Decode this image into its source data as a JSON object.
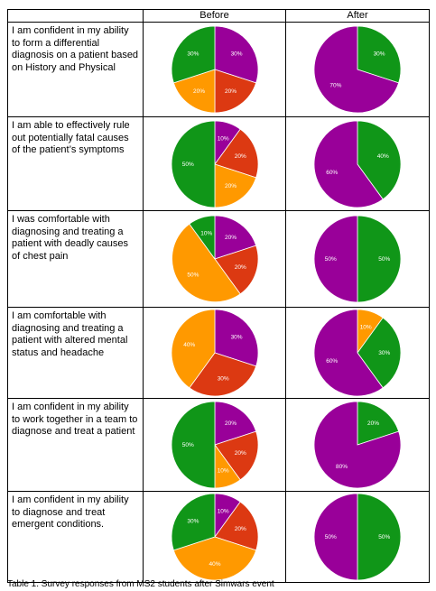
{
  "header": {
    "before_label": "Before",
    "after_label": "After"
  },
  "colors": {
    "purple": "#990099",
    "green": "#109618",
    "orange": "#ff9900",
    "red": "#dc3912"
  },
  "rows": [
    {
      "question": "I am confident in my ability to form a differential diagnosis on a patient based on History and Physical",
      "before": [
        {
          "category": "purple",
          "value": 30,
          "label": "30%"
        },
        {
          "category": "red",
          "value": 20,
          "label": "20%"
        },
        {
          "category": "orange",
          "value": 20,
          "label": "20%"
        },
        {
          "category": "green",
          "value": 30,
          "label": "30%"
        }
      ],
      "after": [
        {
          "category": "green",
          "value": 30,
          "label": "30%"
        },
        {
          "category": "purple",
          "value": 70,
          "label": "70%"
        }
      ]
    },
    {
      "question": "I am able to effectively rule out potentially fatal causes of the patient’s symptoms",
      "before": [
        {
          "category": "purple",
          "value": 10,
          "label": "10%"
        },
        {
          "category": "red",
          "value": 20,
          "label": "20%"
        },
        {
          "category": "orange",
          "value": 20,
          "label": "20%"
        },
        {
          "category": "green",
          "value": 50,
          "label": "50%"
        }
      ],
      "after": [
        {
          "category": "green",
          "value": 40,
          "label": "40%"
        },
        {
          "category": "purple",
          "value": 60,
          "label": "60%"
        }
      ]
    },
    {
      "question": "I was comfortable with diagnosing and treating a patient with deadly causes of chest pain",
      "before": [
        {
          "category": "purple",
          "value": 20,
          "label": "20%"
        },
        {
          "category": "red",
          "value": 20,
          "label": "20%"
        },
        {
          "category": "orange",
          "value": 50,
          "label": "50%"
        },
        {
          "category": "green",
          "value": 10,
          "label": "10%"
        }
      ],
      "after": [
        {
          "category": "green",
          "value": 50,
          "label": "50%"
        },
        {
          "category": "purple",
          "value": 50,
          "label": "50%"
        }
      ]
    },
    {
      "question": "I am comfortable with diagnosing and treating a patient with altered mental status and headache",
      "before": [
        {
          "category": "purple",
          "value": 30,
          "label": "30%"
        },
        {
          "category": "red",
          "value": 30,
          "label": "30%"
        },
        {
          "category": "orange",
          "value": 40,
          "label": "40%"
        }
      ],
      "after": [
        {
          "category": "orange",
          "value": 10,
          "label": "10%"
        },
        {
          "category": "green",
          "value": 30,
          "label": "30%"
        },
        {
          "category": "purple",
          "value": 60,
          "label": "60%"
        }
      ]
    },
    {
      "question": "I am confident in my ability to work together in a team to diagnose and treat a patient",
      "before": [
        {
          "category": "purple",
          "value": 20,
          "label": "20%"
        },
        {
          "category": "red",
          "value": 20,
          "label": "20%"
        },
        {
          "category": "orange",
          "value": 10,
          "label": "10%"
        },
        {
          "category": "green",
          "value": 50,
          "label": "50%"
        }
      ],
      "after": [
        {
          "category": "green",
          "value": 20,
          "label": "20%"
        },
        {
          "category": "purple",
          "value": 80,
          "label": "80%"
        }
      ]
    },
    {
      "question": "I am confident in my ability to diagnose and treat emergent conditions.",
      "before": [
        {
          "category": "purple",
          "value": 10,
          "label": "10%"
        },
        {
          "category": "red",
          "value": 20,
          "label": "20%"
        },
        {
          "category": "orange",
          "value": 40,
          "label": "40%"
        },
        {
          "category": "green",
          "value": 30,
          "label": "30%"
        }
      ],
      "after": [
        {
          "category": "green",
          "value": 50,
          "label": "50%"
        },
        {
          "category": "purple",
          "value": 50,
          "label": "50%"
        }
      ]
    }
  ],
  "caption": "Table 1. Survey responses from MS2 students after Simwars event"
}
